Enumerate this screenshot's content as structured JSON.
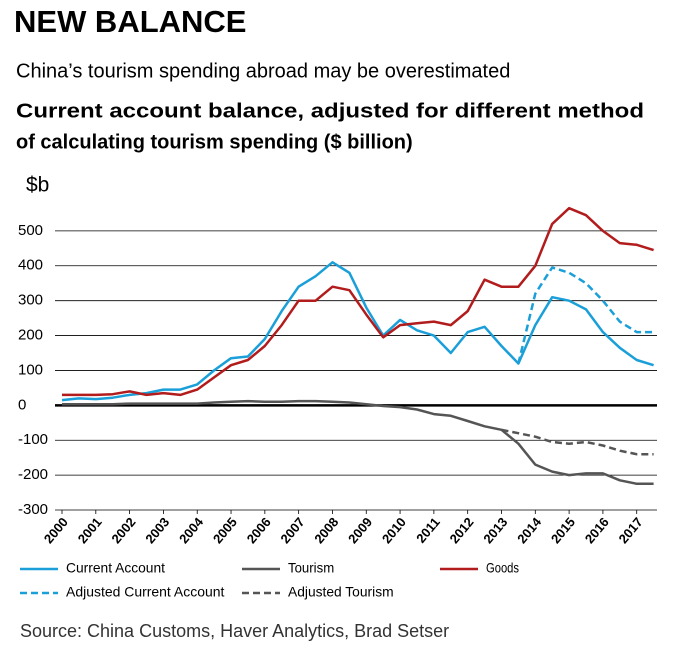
{
  "header": {
    "kicker": "NEW BALANCE",
    "subtitle": "China’s tourism spending abroad may be overestimated"
  },
  "chart_data": {
    "type": "line",
    "title": [
      "Current account balance, adjusted for different method",
      "of calculating tourism spending ($ billion)"
    ],
    "y_label": "$b",
    "source": "Source: China Customs, Haver Analytics, Brad Setser",
    "x": [
      2000,
      2000.5,
      2001,
      2001.5,
      2002,
      2002.5,
      2003,
      2003.5,
      2004,
      2004.5,
      2005,
      2005.5,
      2006,
      2006.5,
      2007,
      2007.5,
      2008,
      2008.5,
      2009,
      2009.5,
      2010,
      2010.5,
      2011,
      2011.5,
      2012,
      2012.5,
      2013,
      2013.5,
      2014,
      2014.5,
      2015,
      2015.5,
      2016,
      2016.5,
      2017,
      2017.5
    ],
    "xlim": [
      2000,
      2017.6
    ],
    "xticks": [
      2000,
      2001,
      2002,
      2003,
      2004,
      2005,
      2006,
      2007,
      2008,
      2009,
      2010,
      2011,
      2012,
      2013,
      2014,
      2015,
      2016,
      2017
    ],
    "ylim": [
      -300,
      600
    ],
    "yticks": [
      -300,
      -200,
      -100,
      0,
      100,
      200,
      300,
      400,
      500
    ],
    "grid": true,
    "series": [
      {
        "name": "Current Account",
        "color": "#1a9fd9",
        "dashed": false,
        "values": [
          15,
          20,
          18,
          22,
          30,
          35,
          45,
          45,
          60,
          100,
          135,
          140,
          190,
          270,
          340,
          370,
          410,
          380,
          280,
          200,
          245,
          215,
          200,
          150,
          210,
          225,
          170,
          120,
          230,
          310,
          300,
          275,
          210,
          165,
          130,
          115
        ]
      },
      {
        "name": "Tourism",
        "color": "#555555",
        "dashed": false,
        "values": [
          3,
          3,
          3,
          3,
          5,
          5,
          5,
          5,
          5,
          8,
          10,
          12,
          10,
          10,
          12,
          12,
          10,
          8,
          3,
          -2,
          -5,
          -12,
          -25,
          -30,
          -45,
          -60,
          -70,
          -110,
          -170,
          -190,
          -200,
          -195,
          -195,
          -215,
          -225,
          -225
        ]
      },
      {
        "name": "Goods",
        "color": "#b21c1c",
        "dashed": false,
        "values": [
          30,
          30,
          30,
          32,
          40,
          30,
          35,
          30,
          45,
          80,
          115,
          130,
          170,
          230,
          300,
          300,
          340,
          330,
          260,
          195,
          230,
          235,
          240,
          230,
          270,
          360,
          340,
          340,
          400,
          520,
          565,
          545,
          500,
          465,
          460,
          445
        ]
      },
      {
        "name": "Adjusted Current Account",
        "color": "#1a9fd9",
        "dashed": true,
        "values": [
          null,
          null,
          null,
          null,
          null,
          null,
          null,
          null,
          null,
          null,
          null,
          null,
          null,
          null,
          null,
          null,
          null,
          null,
          null,
          null,
          null,
          null,
          null,
          null,
          null,
          null,
          null,
          120,
          320,
          395,
          380,
          350,
          300,
          240,
          210,
          210
        ]
      },
      {
        "name": "Adjusted Tourism",
        "color": "#555555",
        "dashed": true,
        "values": [
          null,
          null,
          null,
          null,
          null,
          null,
          null,
          null,
          null,
          null,
          null,
          null,
          null,
          null,
          null,
          null,
          null,
          null,
          null,
          null,
          null,
          null,
          null,
          null,
          null,
          null,
          -70,
          -80,
          -90,
          -105,
          -110,
          -105,
          -115,
          -130,
          -140,
          -140
        ]
      }
    ]
  }
}
